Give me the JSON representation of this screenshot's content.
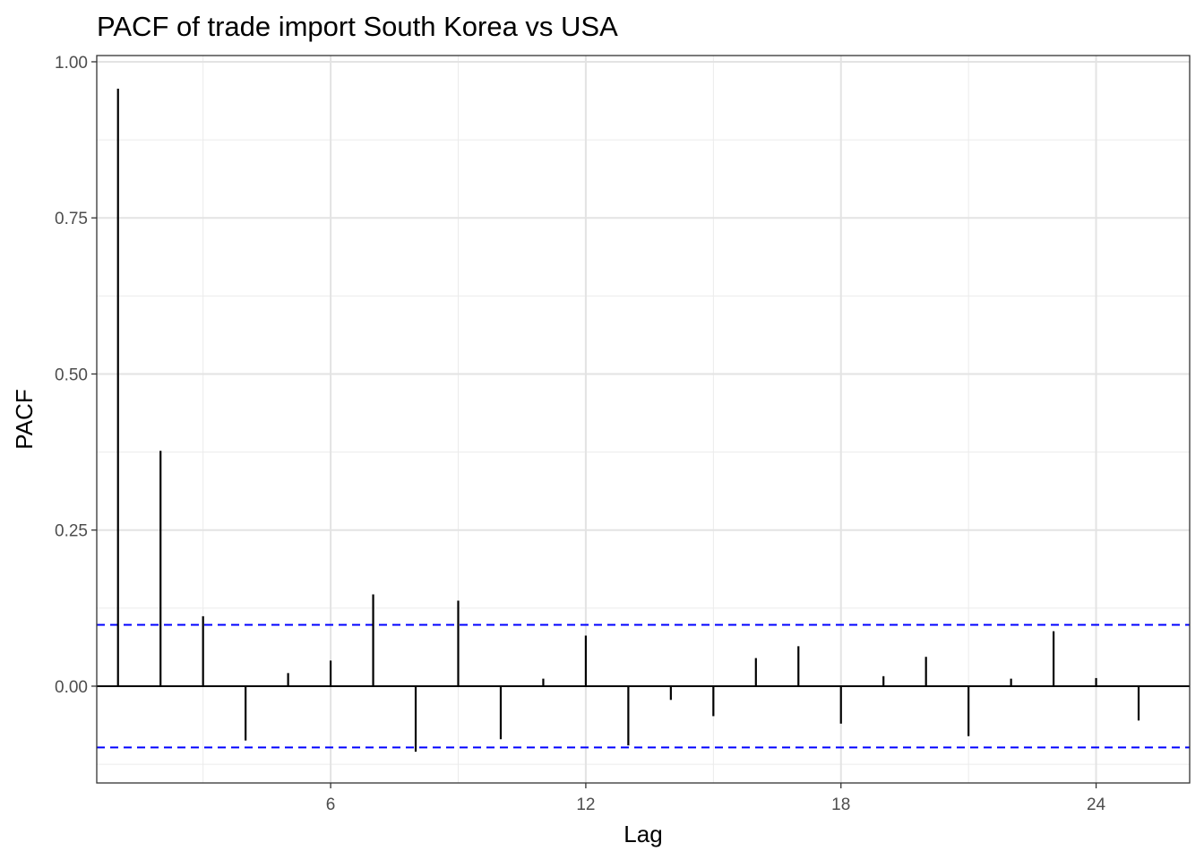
{
  "chart_data": {
    "type": "bar",
    "title": "PACF of trade import South Korea vs USA",
    "xlabel": "Lag",
    "ylabel": "PACF",
    "xlim": [
      0.5,
      26.2
    ],
    "ylim": [
      -0.155,
      1.01
    ],
    "x_ticks": [
      6,
      12,
      18,
      24
    ],
    "y_ticks": [
      0.0,
      0.25,
      0.5,
      0.75,
      1.0
    ],
    "y_tick_labels": [
      "0.00",
      "0.25",
      "0.50",
      "0.75",
      "1.00"
    ],
    "lags": [
      1,
      2,
      3,
      4,
      5,
      6,
      7,
      8,
      9,
      10,
      11,
      12,
      13,
      14,
      15,
      16,
      17,
      18,
      19,
      20,
      21,
      22,
      23,
      24,
      25
    ],
    "values": [
      0.957,
      0.377,
      0.112,
      -0.087,
      0.021,
      0.041,
      0.147,
      -0.105,
      0.137,
      -0.085,
      0.012,
      0.081,
      -0.095,
      -0.022,
      -0.048,
      0.045,
      0.064,
      -0.06,
      0.016,
      0.047,
      -0.08,
      0.012,
      0.088,
      0.013,
      -0.055
    ],
    "confidence_bounds": [
      0.0982,
      -0.0982
    ],
    "bound_color": "#0000ff",
    "line_color": "#000000",
    "grid": true
  }
}
